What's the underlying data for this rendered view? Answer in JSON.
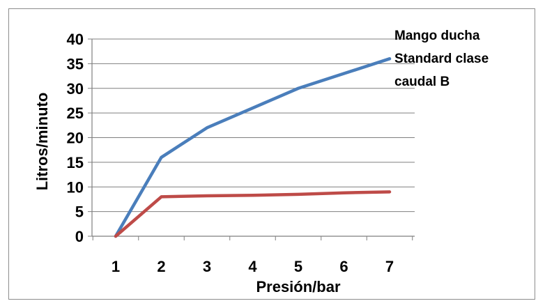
{
  "chart_data": {
    "type": "line",
    "title": "",
    "xlabel": "Presión/bar",
    "ylabel": "Litros/minuto",
    "categories": [
      "1",
      "2",
      "3",
      "4",
      "5",
      "6",
      "7"
    ],
    "ylim": [
      0,
      40
    ],
    "yticks": [
      0,
      5,
      10,
      15,
      20,
      25,
      30,
      35,
      40
    ],
    "grid": true,
    "legend_position": "top-right",
    "series": [
      {
        "name": "Mango ducha Standard clase caudal B",
        "color": "#4a7ebb",
        "x": [
          1,
          2,
          3,
          4,
          5,
          6,
          7
        ],
        "values": [
          0,
          16,
          22,
          26,
          30,
          33,
          36
        ]
      },
      {
        "color": "#be4b48",
        "x": [
          1,
          2,
          3,
          4,
          5,
          6,
          7
        ],
        "values": [
          0,
          8,
          8.2,
          8.3,
          8.5,
          8.8,
          9
        ]
      }
    ]
  }
}
